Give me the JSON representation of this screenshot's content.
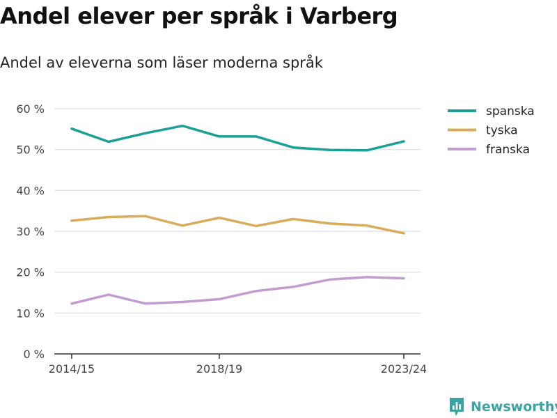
{
  "title": "Andel elever per språk i Varberg",
  "subtitle": "Andel av eleverna som läser moderna språk",
  "brand": "Newsworthy",
  "chart_data": {
    "type": "line",
    "x": [
      "2014/15",
      "2015/16",
      "2016/17",
      "2017/18",
      "2018/19",
      "2019/20",
      "2020/21",
      "2021/22",
      "2022/23",
      "2023/24"
    ],
    "x_tick_labels": [
      "2014/15",
      "2018/19",
      "2023/24"
    ],
    "y_tick_labels": [
      "0 %",
      "10 %",
      "20 %",
      "30 %",
      "40 %",
      "50 %",
      "60 %"
    ],
    "ylim": [
      0,
      60
    ],
    "grid": true,
    "legend_position": "top-right",
    "series": [
      {
        "name": "spanska",
        "color": "#1aa094",
        "values": [
          55.1,
          51.9,
          54.0,
          55.8,
          53.2,
          53.2,
          50.5,
          49.9,
          49.8,
          52.0
        ]
      },
      {
        "name": "tyska",
        "color": "#d9ac5a",
        "values": [
          32.6,
          33.5,
          33.7,
          31.4,
          33.3,
          31.3,
          33.0,
          31.9,
          31.4,
          29.5
        ]
      },
      {
        "name": "franska",
        "color": "#c49bd0",
        "values": [
          12.3,
          14.5,
          12.3,
          12.7,
          13.4,
          15.4,
          16.4,
          18.2,
          18.8,
          18.5
        ]
      }
    ]
  }
}
